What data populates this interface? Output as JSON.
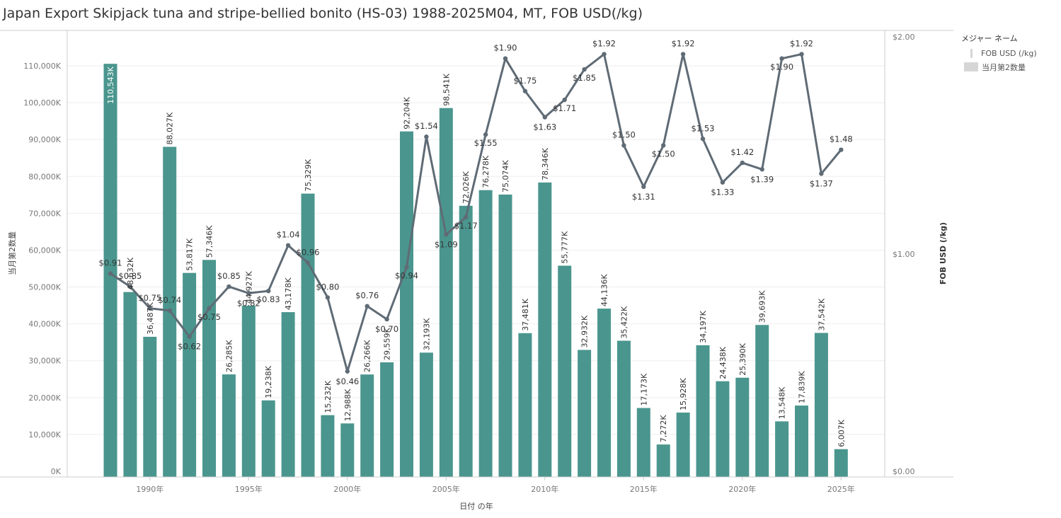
{
  "title": "Japan Export Skipjack tuna and stripe-bellied bonito (HS-03) 1988-2025M04, MT, FOB USD(/kg)",
  "legend": {
    "title": "メジャー ネーム",
    "items": [
      "FOB USD (/kg)",
      "当月第2数量"
    ]
  },
  "colors": {
    "bar": "#4a968e",
    "line": "#5f6b75",
    "grid": "#eeeeee",
    "axis": "#cccccc"
  },
  "chart_data": {
    "type": "bar",
    "categories": [
      1988,
      1989,
      1990,
      1991,
      1992,
      1993,
      1994,
      1995,
      1996,
      1997,
      1998,
      1999,
      2000,
      2001,
      2002,
      2003,
      2004,
      2005,
      2006,
      2007,
      2008,
      2009,
      2010,
      2011,
      2012,
      2013,
      2014,
      2015,
      2016,
      2017,
      2018,
      2019,
      2020,
      2021,
      2022,
      2023,
      2024,
      2025
    ],
    "series": [
      {
        "name": "当月第2数量",
        "type": "bar",
        "axis": "left",
        "values": [
          110543,
          48632,
          36487,
          88027,
          53817,
          57346,
          26285,
          44927,
          19238,
          43178,
          75329,
          15232,
          12988,
          26266,
          29559,
          92204,
          32193,
          98541,
          72026,
          76278,
          75074,
          37481,
          78346,
          55777,
          32932,
          44136,
          35422,
          17173,
          7272,
          15928,
          34197,
          24438,
          25390,
          39693,
          13548,
          17839,
          37542,
          6007
        ],
        "labels": [
          "110,543K",
          "48,632K",
          "36,487K",
          "88,027K",
          "53,817K",
          "57,346K",
          "26,285K",
          "44,927K",
          "19,238K",
          "43,178K",
          "75,329K",
          "15,232K",
          "12,988K",
          "26,266K",
          "29,559K",
          "92,204K",
          "32,193K",
          "98,541K",
          "72,026K",
          "76,278K",
          "75,074K",
          "37,481K",
          "78,346K",
          "55,777K",
          "32,932K",
          "44,136K",
          "35,422K",
          "17,173K",
          "7,272K",
          "15,928K",
          "34,197K",
          "24,438K",
          "25,390K",
          "39,693K",
          "13,548K",
          "17,839K",
          "37,542K",
          "6,007K"
        ]
      },
      {
        "name": "FOB USD (/kg)",
        "type": "line",
        "axis": "right",
        "values": [
          0.91,
          0.85,
          0.75,
          0.74,
          0.62,
          0.75,
          0.85,
          0.82,
          0.83,
          1.04,
          0.96,
          0.8,
          0.46,
          0.76,
          0.7,
          0.94,
          1.54,
          1.09,
          1.17,
          1.55,
          1.9,
          1.75,
          1.63,
          1.71,
          1.85,
          1.92,
          1.5,
          1.31,
          1.5,
          1.92,
          1.53,
          1.33,
          1.42,
          1.39,
          1.9,
          1.92,
          1.37,
          1.48
        ],
        "labels": [
          "$0.91",
          "$0.85",
          "$0.75",
          "$0.74",
          "$0.62",
          "$0.75",
          "$0.85",
          "$0.82",
          "$0.83",
          "$1.04",
          "$0.96",
          "$0.80",
          "$0.46",
          "$0.76",
          "$0.70",
          "$0.94",
          "$1.54",
          "$1.09",
          "$1.17",
          "$1.55",
          "$1.90",
          "$1.75",
          "$1.63",
          "$1.71",
          "$1.85",
          "$1.92",
          "$1.50",
          "$1.31",
          "$1.50",
          "$1.92",
          "$1.53",
          "$1.33",
          "$1.42",
          "$1.39",
          "$1.90",
          "$1.92",
          "$1.37",
          "$1.48"
        ]
      }
    ],
    "xlabel": "日付 の年",
    "ylabel": "当月第2数量",
    "y2label": "FOB USD (/kg)",
    "x_ticks": [
      1990,
      1995,
      2000,
      2005,
      2010,
      2015,
      2020,
      2025
    ],
    "x_tick_labels": [
      "1990年",
      "1995年",
      "2000年",
      "2005年",
      "2010年",
      "2015年",
      "2020年",
      "2025年"
    ],
    "ylim": [
      0,
      115000
    ],
    "y_ticks": [
      0,
      10000,
      20000,
      30000,
      40000,
      50000,
      60000,
      70000,
      80000,
      90000,
      100000,
      110000
    ],
    "y_tick_labels": [
      "0K",
      "10,000K",
      "20,000K",
      "30,000K",
      "40,000K",
      "50,000K",
      "60,000K",
      "70,000K",
      "80,000K",
      "90,000K",
      "100,000K",
      "110,000K"
    ],
    "y2lim": [
      0,
      2.0
    ],
    "y2_ticks": [
      0,
      1.0,
      2.0
    ],
    "y2_tick_labels": [
      "$0.00",
      "$1.00",
      "$2.00"
    ],
    "grid": true,
    "legend_position": "right"
  }
}
